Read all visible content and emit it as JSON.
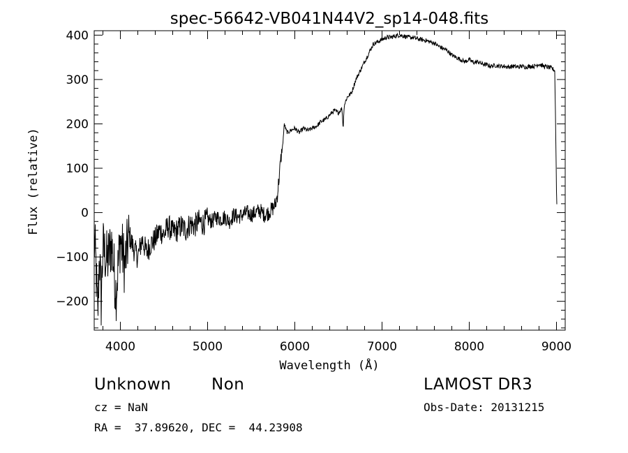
{
  "chart_data": {
    "type": "line",
    "title": "spec-56642-VB041N44V2_sp14-048.fits",
    "xlabel": "Wavelength (Å)",
    "ylabel": "Flux (relative)",
    "xlim": [
      3700,
      9100
    ],
    "ylim": [
      -265,
      410
    ],
    "xticks": [
      4000,
      5000,
      6000,
      7000,
      8000,
      9000
    ],
    "yticks": [
      -200,
      -100,
      0,
      100,
      200,
      300,
      400
    ],
    "grid": false,
    "legend": "none",
    "line_color": "#000000",
    "series": [
      {
        "x": [
          3700,
          3720,
          3740,
          3760,
          3780,
          3800,
          3850,
          3900,
          3950,
          4000,
          4050,
          4100,
          4150,
          4200,
          4250,
          4300,
          4350,
          4400,
          4450,
          4500,
          4550,
          4600,
          4650,
          4700,
          4750,
          4800,
          4850,
          4900,
          4950,
          5000,
          5050,
          5100,
          5150,
          5200,
          5250,
          5300,
          5350,
          5400,
          5450,
          5500,
          5550,
          5600,
          5650,
          5700,
          5750,
          5780,
          5800,
          5820,
          5840,
          5860,
          5880,
          5900,
          5920,
          5950,
          6000,
          6050,
          6100,
          6150,
          6200,
          6250,
          6300,
          6350,
          6400,
          6450,
          6500,
          6540,
          6555,
          6565,
          6580,
          6600,
          6650,
          6700,
          6750,
          6800,
          6850,
          6900,
          6950,
          7000,
          7050,
          7100,
          7150,
          7200,
          7250,
          7300,
          7350,
          7400,
          7450,
          7500,
          7550,
          7600,
          7650,
          7700,
          7750,
          7800,
          7850,
          7900,
          7950,
          8000,
          8050,
          8100,
          8150,
          8200,
          8250,
          8300,
          8350,
          8400,
          8450,
          8500,
          8550,
          8600,
          8650,
          8700,
          8750,
          8800,
          8850,
          8900,
          8950,
          8980,
          8990,
          9000,
          9005
        ],
        "y": [
          -60,
          -120,
          -240,
          -90,
          -200,
          -80,
          -110,
          -70,
          -180,
          -60,
          -120,
          -50,
          -80,
          -100,
          -60,
          -90,
          -70,
          -60,
          -40,
          -50,
          -30,
          -45,
          -40,
          -30,
          -40,
          -25,
          -30,
          -20,
          -25,
          -15,
          -20,
          -10,
          -15,
          -10,
          -20,
          -5,
          -10,
          -5,
          0,
          -5,
          0,
          5,
          -5,
          0,
          10,
          20,
          40,
          80,
          120,
          150,
          200,
          185,
          180,
          185,
          190,
          180,
          190,
          185,
          190,
          195,
          205,
          210,
          220,
          230,
          225,
          235,
          190,
          240,
          250,
          260,
          270,
          300,
          320,
          340,
          360,
          380,
          385,
          390,
          395,
          395,
          398,
          400,
          398,
          395,
          395,
          392,
          390,
          388,
          385,
          382,
          375,
          370,
          365,
          355,
          350,
          345,
          340,
          345,
          338,
          340,
          335,
          333,
          330,
          332,
          330,
          330,
          328,
          330,
          328,
          330,
          328,
          330,
          330,
          335,
          330,
          328,
          325,
          320,
          200,
          50,
          10
        ]
      }
    ]
  },
  "annotations": {
    "object_class": "Unknown",
    "object_subclass": "Non",
    "survey": "LAMOST DR3",
    "cz": "cz = NaN",
    "obs_date": "Obs-Date: 20131215",
    "coords": "RA =  37.89620, DEC =  44.23908"
  }
}
